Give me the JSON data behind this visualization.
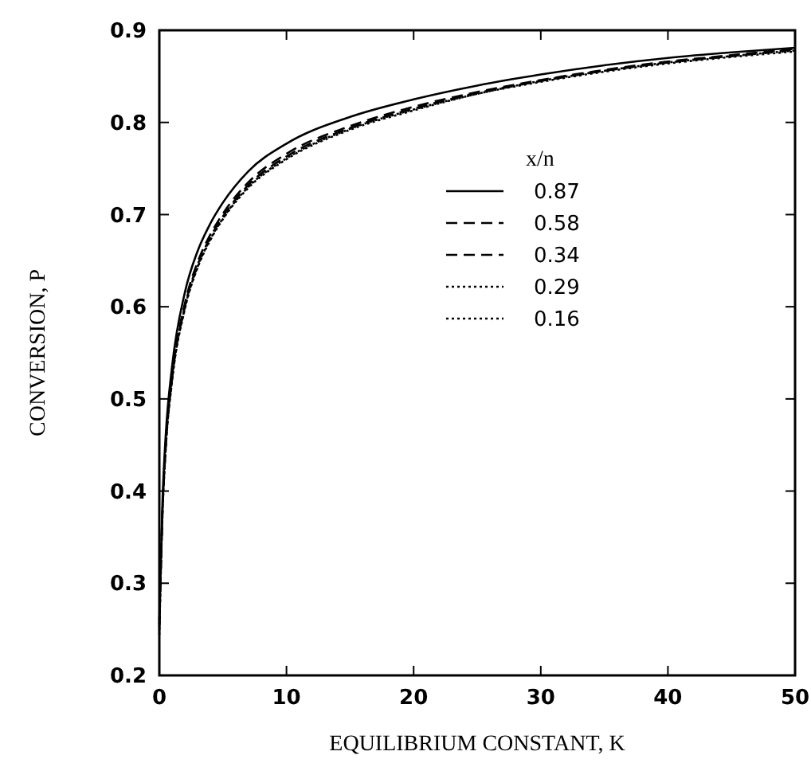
{
  "chart_data": {
    "type": "line",
    "xlabel": "EQUILIBRIUM CONSTANT, K",
    "ylabel": "CONVERSION, P",
    "legend_title": "x/n",
    "xlim": [
      0,
      50
    ],
    "xticks": [
      0,
      10,
      20,
      30,
      40,
      50
    ],
    "ylim": [
      0.2,
      0.9
    ],
    "yticks": [
      0.2,
      0.3,
      0.4,
      0.5,
      0.6,
      0.7,
      0.8,
      0.9
    ],
    "grid": false,
    "legend": "right",
    "marker": "none",
    "series": [
      {
        "name": "0.87",
        "color": "#000000",
        "line_style": "solid",
        "x": [
          0,
          0.25,
          0.5,
          1,
          2,
          3,
          4,
          5,
          7,
          10,
          15,
          20,
          25,
          30,
          35,
          40,
          45,
          50
        ],
        "values": [
          0.26,
          0.39,
          0.46,
          0.535,
          0.615,
          0.66,
          0.69,
          0.713,
          0.747,
          0.777,
          0.806,
          0.825,
          0.84,
          0.852,
          0.862,
          0.87,
          0.876,
          0.881
        ]
      },
      {
        "name": "0.58",
        "color": "#000000",
        "line_style": "dashed",
        "x": [
          0,
          0.25,
          0.5,
          1,
          2,
          3,
          4,
          5,
          7,
          10,
          15,
          20,
          25,
          30,
          35,
          40,
          45,
          50
        ],
        "values": [
          0.256,
          0.38,
          0.45,
          0.525,
          0.603,
          0.648,
          0.678,
          0.701,
          0.735,
          0.766,
          0.796,
          0.817,
          0.833,
          0.846,
          0.857,
          0.866,
          0.873,
          0.88
        ]
      },
      {
        "name": "0.34",
        "color": "#000000",
        "line_style": "dashed",
        "x": [
          0,
          0.25,
          0.5,
          1,
          2,
          3,
          4,
          5,
          7,
          10,
          15,
          20,
          25,
          30,
          35,
          40,
          45,
          50
        ],
        "values": [
          0.252,
          0.378,
          0.448,
          0.522,
          0.6,
          0.645,
          0.675,
          0.698,
          0.732,
          0.763,
          0.794,
          0.815,
          0.832,
          0.845,
          0.856,
          0.865,
          0.872,
          0.879
        ]
      },
      {
        "name": "0.29",
        "color": "#000000",
        "line_style": "dotted",
        "x": [
          0,
          0.25,
          0.5,
          1,
          2,
          3,
          4,
          5,
          7,
          10,
          15,
          20,
          25,
          30,
          35,
          40,
          45,
          50
        ],
        "values": [
          0.248,
          0.376,
          0.446,
          0.52,
          0.598,
          0.643,
          0.673,
          0.696,
          0.73,
          0.761,
          0.793,
          0.814,
          0.831,
          0.845,
          0.856,
          0.865,
          0.872,
          0.878
        ]
      },
      {
        "name": "0.16",
        "color": "#000000",
        "line_style": "dotted",
        "x": [
          0,
          0.25,
          0.5,
          1,
          2,
          3,
          4,
          5,
          7,
          10,
          15,
          20,
          25,
          30,
          35,
          40,
          45,
          50
        ],
        "values": [
          0.244,
          0.375,
          0.445,
          0.519,
          0.597,
          0.642,
          0.672,
          0.695,
          0.729,
          0.76,
          0.792,
          0.813,
          0.831,
          0.844,
          0.855,
          0.864,
          0.871,
          0.877
        ]
      }
    ]
  }
}
